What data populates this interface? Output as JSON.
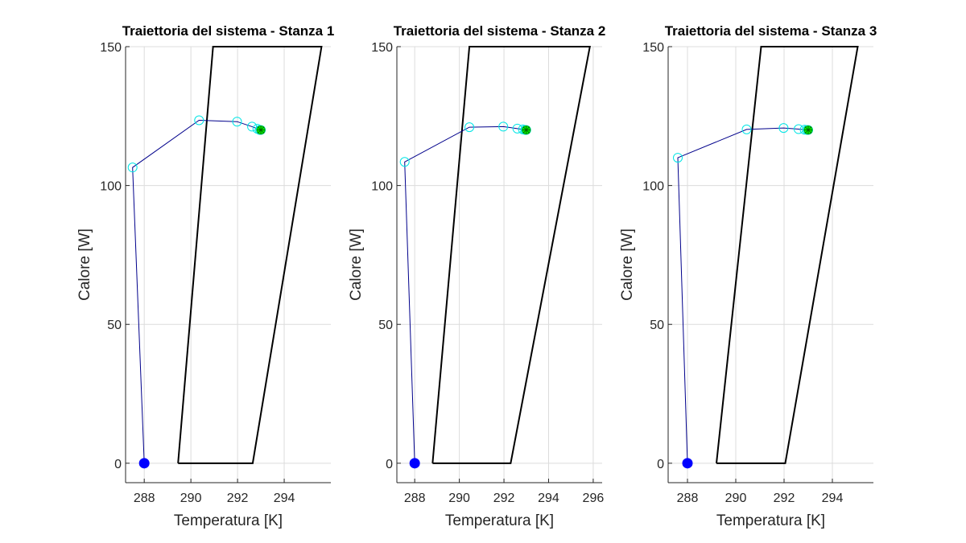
{
  "chart_data": [
    {
      "type": "line",
      "title": "Traiettoria del sistema - Stanza 1",
      "xlabel": "Temperatura [K]",
      "ylabel": "Calore [W]",
      "xlim": [
        287.2,
        296.0
      ],
      "ylim": [
        -7,
        150
      ],
      "xticks": [
        288,
        290,
        292,
        294
      ],
      "yticks": [
        0,
        50,
        100,
        150
      ],
      "grid": true,
      "region": {
        "x": [
          289.45,
          292.65,
          295.6,
          290.95,
          289.45
        ],
        "y": [
          0,
          0,
          150,
          150,
          0
        ]
      },
      "trajectory": {
        "x": [
          288.0,
          287.5,
          290.35,
          291.98,
          292.62,
          292.85,
          292.95,
          293.0
        ],
        "y": [
          0,
          106.5,
          123.5,
          123.0,
          121.2,
          120.4,
          120.0,
          120.0
        ]
      },
      "start_point": {
        "x": 288.0,
        "y": 0
      },
      "end_point": {
        "x": 293.0,
        "y": 120.0
      }
    },
    {
      "type": "line",
      "title": "Traiettoria del sistema - Stanza 2",
      "xlabel": "Temperatura [K]",
      "ylabel": "Calore [W]",
      "xlim": [
        287.2,
        296.4
      ],
      "ylim": [
        -7,
        150
      ],
      "xticks": [
        288,
        290,
        292,
        294,
        296
      ],
      "yticks": [
        0,
        50,
        100,
        150
      ],
      "grid": true,
      "region": {
        "x": [
          288.8,
          292.3,
          295.85,
          290.45,
          288.8
        ],
        "y": [
          0,
          0,
          150,
          150,
          0
        ]
      },
      "trajectory": {
        "x": [
          288.0,
          287.55,
          290.45,
          291.97,
          292.6,
          292.85,
          292.95,
          293.0
        ],
        "y": [
          0,
          108.5,
          121.0,
          121.2,
          120.5,
          120.2,
          120.0,
          120.0
        ]
      },
      "start_point": {
        "x": 288.0,
        "y": 0
      },
      "end_point": {
        "x": 293.0,
        "y": 120.0
      }
    },
    {
      "type": "line",
      "title": "Traiettoria del sistema - Stanza 3",
      "xlabel": "Temperatura [K]",
      "ylabel": "Calore [W]",
      "xlim": [
        287.2,
        295.7
      ],
      "ylim": [
        -7,
        150
      ],
      "xticks": [
        288,
        290,
        292,
        294
      ],
      "yticks": [
        0,
        50,
        100,
        150
      ],
      "grid": true,
      "region": {
        "x": [
          289.2,
          292.05,
          295.05,
          291.05,
          289.2
        ],
        "y": [
          0,
          0,
          150,
          150,
          0
        ]
      },
      "trajectory": {
        "x": [
          288.0,
          287.6,
          290.45,
          291.98,
          292.6,
          292.85,
          292.95,
          293.0
        ],
        "y": [
          0,
          110.0,
          120.2,
          120.7,
          120.3,
          120.1,
          120.0,
          120.0
        ]
      },
      "start_point": {
        "x": 288.0,
        "y": 0
      },
      "end_point": {
        "x": 293.0,
        "y": 120.0
      }
    }
  ],
  "colors": {
    "region": "#000000",
    "trajectory_line": "#00008b",
    "trajectory_marker": "#00e5e5",
    "start_marker": "#0000ff",
    "end_marker": "#00ff00",
    "grid": "#dcdcdc",
    "axis": "#262626"
  }
}
